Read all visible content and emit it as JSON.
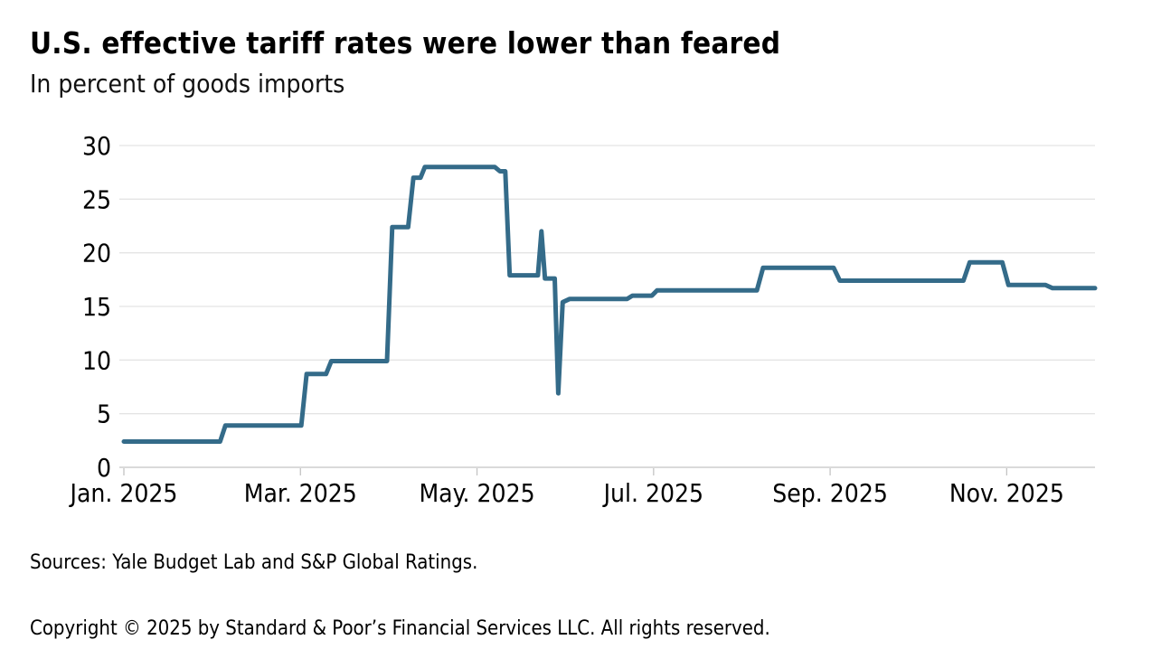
{
  "header": {
    "title": "U.S. effective tariff rates were lower than feared",
    "subtitle": "In percent  of goods  imports"
  },
  "footer": {
    "sources": "Sources:  Yale Budget  Lab and S&P  Global  Ratings.",
    "copyright": "Copyright  © 2025 by Standard  & Poor’s  Financial  Services  LLC.  All rights  reserved."
  },
  "chart_data": {
    "type": "line",
    "title": "U.S. effective tariff rates were lower than feared",
    "subtitle": "In percent of goods imports",
    "ylabel": "",
    "xlabel": "",
    "grid": true,
    "legend": "none",
    "colors": {
      "line": "#346b89",
      "grid": "#e4e4e4",
      "axis": "#c4c4c4",
      "text": "#000000"
    },
    "x_axis": {
      "unit": "months since Jan 1, 2025",
      "min": 0,
      "max": 11,
      "ticks": [
        {
          "m": 0,
          "label": "Jan. 2025"
        },
        {
          "m": 2,
          "label": "Mar. 2025"
        },
        {
          "m": 4,
          "label": "May. 2025"
        },
        {
          "m": 6,
          "label": "Jul. 2025"
        },
        {
          "m": 8,
          "label": "Sep. 2025"
        },
        {
          "m": 10,
          "label": "Nov. 2025"
        }
      ]
    },
    "y_axis": {
      "min": 0,
      "max": 30,
      "ticks": [
        0,
        5,
        10,
        15,
        20,
        25,
        30
      ]
    },
    "series": [
      {
        "name": "effective-tariff-rate",
        "color": "#346b89",
        "points": [
          [
            0.0,
            2.4
          ],
          [
            1.09,
            2.4
          ],
          [
            1.15,
            3.9
          ],
          [
            2.01,
            3.9
          ],
          [
            2.07,
            8.7
          ],
          [
            2.29,
            8.7
          ],
          [
            2.35,
            9.9
          ],
          [
            2.98,
            9.9
          ],
          [
            3.04,
            22.4
          ],
          [
            3.22,
            22.4
          ],
          [
            3.28,
            27.0
          ],
          [
            3.36,
            27.0
          ],
          [
            3.41,
            28.0
          ],
          [
            4.2,
            28.0
          ],
          [
            4.26,
            27.6
          ],
          [
            4.32,
            27.6
          ],
          [
            4.37,
            17.9
          ],
          [
            4.69,
            17.9
          ],
          [
            4.73,
            22.0
          ],
          [
            4.77,
            17.6
          ],
          [
            4.88,
            17.6
          ],
          [
            4.92,
            6.9
          ],
          [
            4.97,
            15.4
          ],
          [
            5.05,
            15.7
          ],
          [
            5.7,
            15.7
          ],
          [
            5.76,
            16.0
          ],
          [
            5.98,
            16.0
          ],
          [
            6.04,
            16.5
          ],
          [
            7.17,
            16.5
          ],
          [
            7.24,
            18.6
          ],
          [
            8.04,
            18.6
          ],
          [
            8.11,
            17.4
          ],
          [
            9.51,
            17.4
          ],
          [
            9.58,
            19.1
          ],
          [
            9.95,
            19.1
          ],
          [
            10.02,
            17.0
          ],
          [
            10.44,
            17.0
          ],
          [
            10.52,
            16.7
          ],
          [
            11.0,
            16.7
          ]
        ]
      }
    ]
  }
}
